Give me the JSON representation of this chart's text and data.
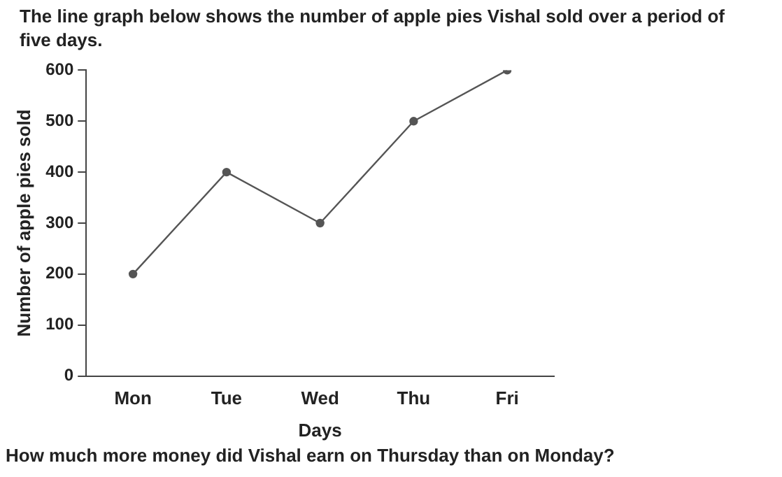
{
  "chart_data": {
    "type": "line",
    "title": "The line graph below shows the number of apple pies Vishal sold over a period of five days.",
    "xlabel": "Days",
    "ylabel": "Number of apple pies sold",
    "categories": [
      "Mon",
      "Tue",
      "Wed",
      "Thu",
      "Fri"
    ],
    "values": [
      200,
      400,
      300,
      500,
      600
    ],
    "color": "#555555",
    "ylim": [
      0,
      600
    ],
    "yticks": [
      0,
      100,
      200,
      300,
      400,
      500,
      600
    ],
    "marker": "circle",
    "line_style": "solid",
    "grid": false,
    "legend": false,
    "annotations": [
      "How much more money did Vishal earn on Thursday than on Monday?"
    ]
  }
}
